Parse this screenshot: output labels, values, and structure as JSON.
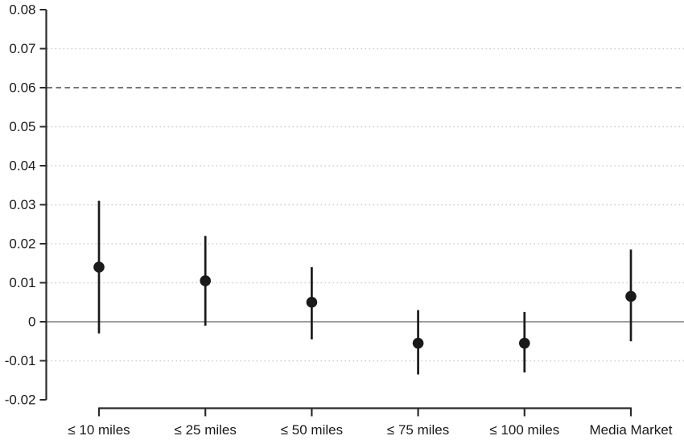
{
  "chart_data": {
    "type": "scatter",
    "subtype": "point-estimates-with-confidence-intervals",
    "title": "",
    "xlabel": "",
    "ylabel": "",
    "categories": [
      "≤ 10 miles",
      "≤ 25 miles",
      "≤ 50 miles",
      "≤ 75 miles",
      "≤ 100 miles",
      "Media Market"
    ],
    "points": [
      {
        "label": "≤ 10 miles",
        "estimate": 0.014,
        "ci_low": -0.003,
        "ci_high": 0.031
      },
      {
        "label": "≤ 25 miles",
        "estimate": 0.0105,
        "ci_low": -0.001,
        "ci_high": 0.022
      },
      {
        "label": "≤ 50 miles",
        "estimate": 0.005,
        "ci_low": -0.0045,
        "ci_high": 0.014
      },
      {
        "label": "≤ 75 miles",
        "estimate": -0.0055,
        "ci_low": -0.0135,
        "ci_high": 0.003
      },
      {
        "label": "≤ 100 miles",
        "estimate": -0.0055,
        "ci_low": -0.013,
        "ci_high": 0.0025
      },
      {
        "label": "Media Market",
        "estimate": 0.0065,
        "ci_low": -0.005,
        "ci_high": 0.0185
      }
    ],
    "ylim": [
      -0.02,
      0.08
    ],
    "ytick_step": 0.01,
    "ytick_labels": [
      "0.08",
      "0.07",
      "0.06",
      "0.05",
      "0.04",
      "0.03",
      "0.02",
      "0.01",
      "0",
      "-0.01",
      "-0.02"
    ],
    "reference_line_y": 0.06,
    "zero_line_y": 0,
    "grid": "dotted-horizontal",
    "legend": "none"
  },
  "colors": {
    "background": "#ffffff",
    "point": "#1a1a1a",
    "error_bar": "#1a1a1a",
    "axis": "#2b2b2b",
    "text": "#1a1a1a",
    "zero_line": "#8f8f8f",
    "reference_line": "#4a4a4a",
    "gridline": "#cdcdcd"
  }
}
